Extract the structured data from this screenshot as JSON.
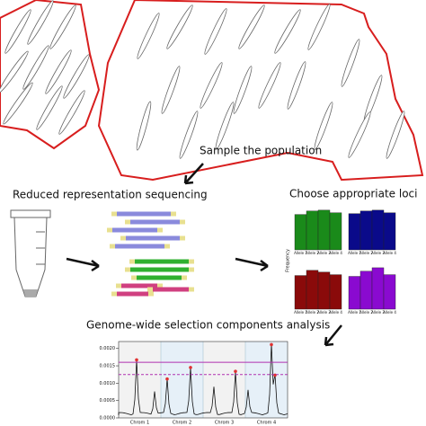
{
  "labels": {
    "sample": "Sample the population",
    "sequencing": "Reduced representation sequencing",
    "loci": "Choose appropriate loci",
    "analysis": "Genome-wide selection components analysis"
  },
  "loci_charts": {
    "y_label": "Frequency",
    "categories": [
      "Allele 1",
      "Allele 2",
      "Allele 3",
      "Allele 4"
    ],
    "panels": [
      {
        "color": "#1a8a1a",
        "values": [
          0.82,
          0.9,
          0.92,
          0.86
        ]
      },
      {
        "color": "#0a0a8a",
        "values": [
          0.84,
          0.9,
          0.92,
          0.86
        ]
      },
      {
        "color": "#8a0a0a",
        "values": [
          0.78,
          0.9,
          0.86,
          0.8
        ]
      },
      {
        "color": "#8a0ad0",
        "values": [
          0.76,
          0.88,
          0.96,
          0.8
        ]
      }
    ]
  },
  "manhattan": {
    "ylim": [
      0,
      0.0022
    ],
    "yticks": [
      {
        "value": 0,
        "label": "0.0000"
      },
      {
        "value": 0.0005,
        "label": "0.0005"
      },
      {
        "value": 0.001,
        "label": "0.0010"
      },
      {
        "value": 0.0015,
        "label": "0.0015"
      },
      {
        "value": 0.002,
        "label": "0.0020"
      }
    ],
    "chromosomes": [
      "Chrom 1",
      "Chrom 2",
      "Chrom 3",
      "Chrom 4"
    ],
    "thresholds": [
      {
        "value": 0.0016,
        "color": "#b030b0",
        "dashed": false
      },
      {
        "value": 0.00125,
        "color": "#b030b0",
        "dashed": true
      }
    ]
  }
}
